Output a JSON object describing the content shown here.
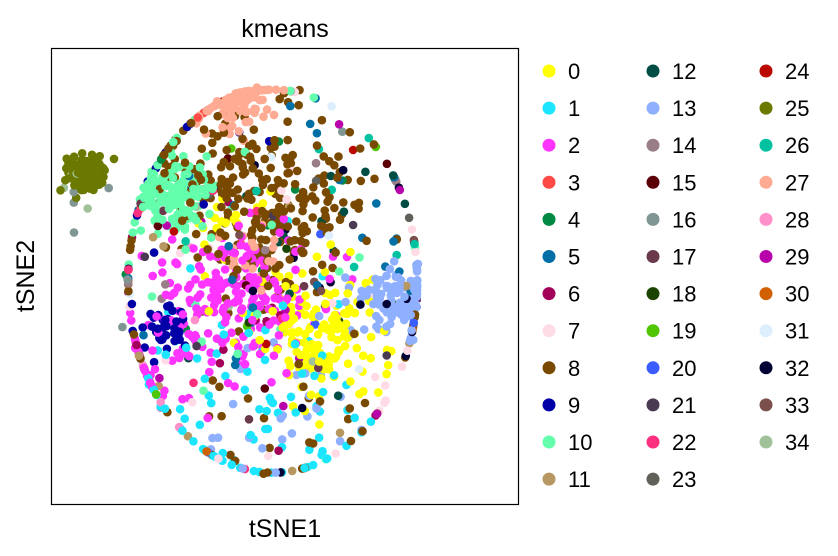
{
  "chart_data": {
    "type": "scatter",
    "title": "kmeans",
    "xlabel": "tSNE1",
    "ylabel": "tSNE2",
    "grid": false,
    "axis_ticks": false,
    "legend_position": "right",
    "legend_columns": 3,
    "xlim": [
      -45,
      50
    ],
    "ylim": [
      -50,
      48
    ],
    "clusters": [
      {
        "name": "0",
        "color": "#FFFF00",
        "centers": [
          [
            8,
            -11,
            6,
            120
          ],
          [
            -8,
            12,
            5,
            25
          ],
          [
            14,
            -20,
            6,
            30
          ]
        ]
      },
      {
        "name": "1",
        "color": "#1CE6FF",
        "centers": [
          [
            -2,
            -30,
            14,
            90
          ]
        ]
      },
      {
        "name": "2",
        "color": "#FF34FF",
        "centers": [
          [
            -8,
            -5,
            8,
            200
          ],
          [
            -26,
            -22,
            6,
            30
          ]
        ]
      },
      {
        "name": "3",
        "color": "#FF4A46",
        "centers": [
          [
            -22,
            20,
            18,
            6
          ]
        ]
      },
      {
        "name": "4",
        "color": "#008941",
        "centers": [
          [
            0,
            12,
            16,
            8
          ]
        ]
      },
      {
        "name": "5",
        "color": "#006FA6",
        "centers": [
          [
            5,
            5,
            22,
            30
          ]
        ]
      },
      {
        "name": "6",
        "color": "#A30059",
        "centers": [
          [
            0,
            0,
            25,
            12
          ]
        ]
      },
      {
        "name": "7",
        "color": "#FFDBE5",
        "centers": [
          [
            15,
            -18,
            25,
            25
          ]
        ]
      },
      {
        "name": "8",
        "color": "#7A4900",
        "centers": [
          [
            -1,
            13,
            9,
            220
          ],
          [
            -15,
            26,
            7,
            50
          ],
          [
            0,
            -20,
            22,
            60
          ]
        ]
      },
      {
        "name": "9",
        "color": "#0000A6",
        "centers": [
          [
            -22,
            -12,
            3,
            40
          ],
          [
            -14,
            33,
            12,
            15
          ]
        ]
      },
      {
        "name": "10",
        "color": "#63FFAC",
        "centers": [
          [
            -20,
            17,
            4,
            160
          ],
          [
            -5,
            5,
            24,
            25
          ]
        ]
      },
      {
        "name": "11",
        "color": "#B79762",
        "centers": [
          [
            0,
            -15,
            22,
            10
          ]
        ]
      },
      {
        "name": "12",
        "color": "#004D43",
        "centers": [
          [
            12,
            10,
            16,
            15
          ]
        ]
      },
      {
        "name": "13",
        "color": "#8FB0FF",
        "centers": [
          [
            26,
            -6,
            4,
            110
          ],
          [
            4,
            -32,
            10,
            25
          ]
        ]
      },
      {
        "name": "14",
        "color": "#997D87",
        "centers": [
          [
            5,
            0,
            20,
            6
          ]
        ]
      },
      {
        "name": "15",
        "color": "#5A0007",
        "centers": [
          [
            0,
            10,
            20,
            5
          ]
        ]
      },
      {
        "name": "16",
        "color": "#809693",
        "centers": [
          [
            -40,
            18,
            4,
            5
          ],
          [
            0,
            0,
            20,
            4
          ]
        ]
      },
      {
        "name": "17",
        "color": "#6A3A4C",
        "centers": [
          [
            0,
            0,
            20,
            6
          ]
        ]
      },
      {
        "name": "18",
        "color": "#1B4400",
        "centers": [
          [
            0,
            5,
            20,
            5
          ]
        ]
      },
      {
        "name": "19",
        "color": "#4FC601",
        "centers": [
          [
            0,
            0,
            20,
            4
          ]
        ]
      },
      {
        "name": "20",
        "color": "#3B5DFF",
        "centers": [
          [
            0,
            0,
            20,
            5
          ]
        ]
      },
      {
        "name": "21",
        "color": "#4A3B53",
        "centers": [
          [
            0,
            0,
            20,
            5
          ]
        ]
      },
      {
        "name": "22",
        "color": "#FF2F80",
        "centers": [
          [
            -10,
            -5,
            24,
            10
          ]
        ]
      },
      {
        "name": "23",
        "color": "#61615A",
        "centers": [
          [
            0,
            0,
            22,
            6
          ]
        ]
      },
      {
        "name": "24",
        "color": "#BA0900",
        "centers": [
          [
            -5,
            10,
            20,
            4
          ]
        ]
      },
      {
        "name": "25",
        "color": "#6B7900",
        "centers": [
          [
            -38,
            21,
            2.2,
            110
          ]
        ]
      },
      {
        "name": "26",
        "color": "#00C2A0",
        "centers": [
          [
            0,
            5,
            22,
            8
          ]
        ]
      },
      {
        "name": "27",
        "color": "#FFAA92",
        "centers": [
          [
            -8,
            39,
            4,
            150
          ],
          [
            -3,
            5,
            4,
            18
          ]
        ]
      },
      {
        "name": "28",
        "color": "#FF90C9",
        "centers": [
          [
            0,
            0,
            22,
            5
          ]
        ]
      },
      {
        "name": "29",
        "color": "#B903AA",
        "centers": [
          [
            0,
            0,
            24,
            10
          ]
        ]
      },
      {
        "name": "30",
        "color": "#D16100",
        "centers": [
          [
            10,
            0,
            20,
            3
          ]
        ]
      },
      {
        "name": "31",
        "color": "#DDEFFF",
        "centers": [
          [
            20,
            -10,
            22,
            8
          ]
        ]
      },
      {
        "name": "32",
        "color": "#000035",
        "centers": [
          [
            15,
            0,
            18,
            20
          ]
        ]
      },
      {
        "name": "33",
        "color": "#7B4F4B",
        "centers": [
          [
            0,
            0,
            20,
            4
          ]
        ]
      },
      {
        "name": "34",
        "color": "#A1C299",
        "centers": [
          [
            -38,
            18,
            3,
            4
          ],
          [
            0,
            -5,
            20,
            3
          ]
        ]
      }
    ]
  }
}
